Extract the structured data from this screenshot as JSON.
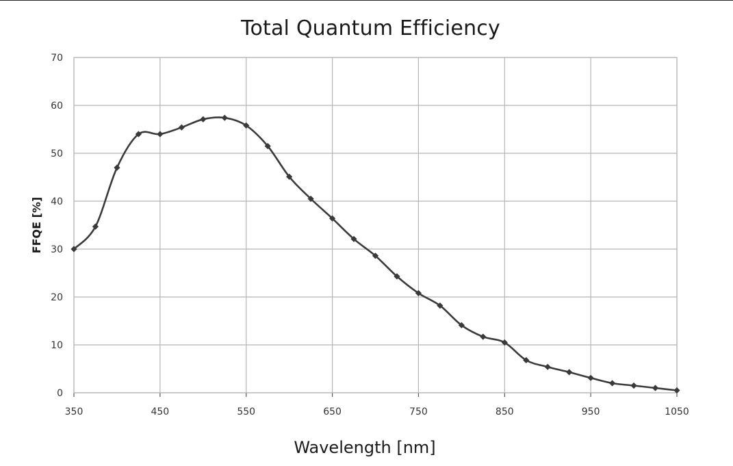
{
  "chart_data": {
    "type": "line",
    "title": "Total Quantum Efficiency",
    "xlabel": "Wavelength [nm]",
    "ylabel": "FFQE [%]",
    "xlim": [
      350,
      1050
    ],
    "ylim": [
      0,
      70
    ],
    "xticks": [
      350,
      450,
      550,
      650,
      750,
      850,
      950,
      1050
    ],
    "yticks": [
      0,
      10,
      20,
      30,
      40,
      50,
      60,
      70
    ],
    "grid": true,
    "legend": "none",
    "line_color": "#3a3a3a",
    "series": [
      {
        "x": [
          350,
          375,
          400,
          425,
          450,
          475,
          500,
          525,
          550,
          575,
          600,
          625,
          650,
          675,
          700,
          725,
          750,
          775,
          800,
          825,
          850,
          875,
          900,
          925,
          950,
          975,
          1000,
          1025,
          1050
        ],
        "values": [
          30,
          34.7,
          47,
          54,
          54,
          55.4,
          57.1,
          57.4,
          55.8,
          51.5,
          45.1,
          40.5,
          36.4,
          32.1,
          28.6,
          24.3,
          20.8,
          18.2,
          14.1,
          11.7,
          10.5,
          6.8,
          5.4,
          4.3,
          3.1,
          2.0,
          1.5,
          1.0,
          0.5
        ]
      }
    ]
  }
}
